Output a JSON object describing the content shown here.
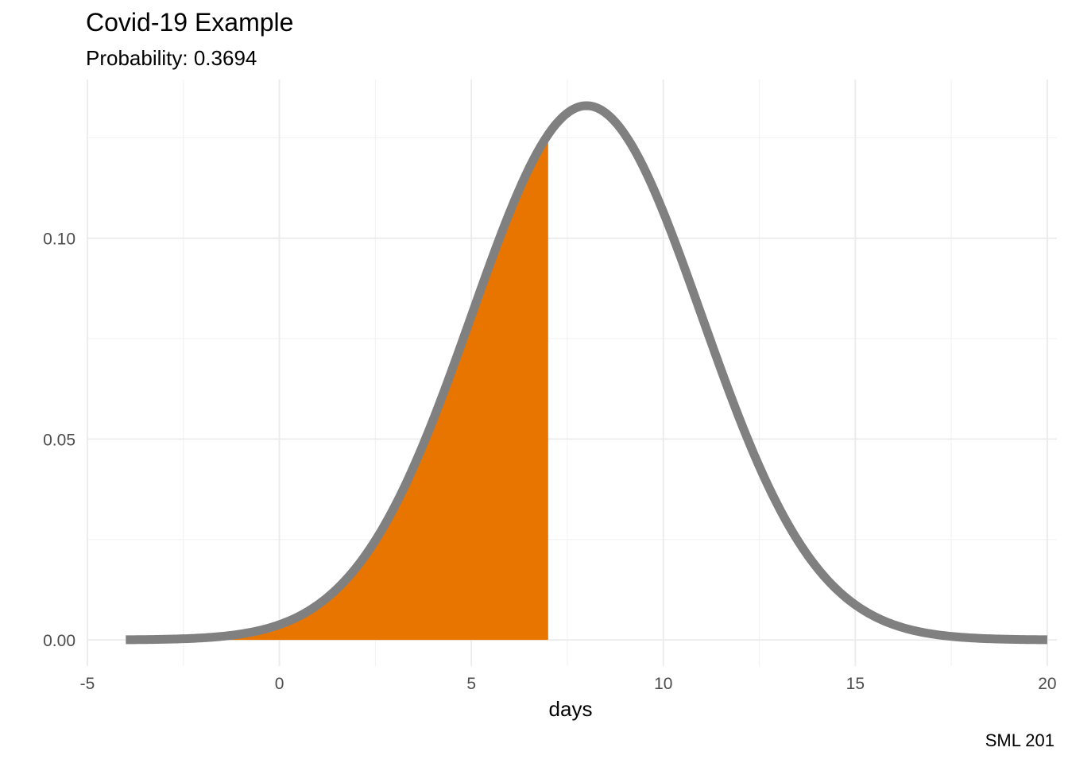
{
  "chart_data": {
    "type": "area",
    "title": "Covid-19 Example",
    "subtitle": "Probability: 0.3694",
    "caption": "SML 201",
    "xlabel": "days",
    "ylabel": "",
    "distribution": {
      "family": "normal",
      "mean": 8,
      "sd": 3
    },
    "curve_range": [
      -4,
      20
    ],
    "shaded_range": [
      -1.3,
      7
    ],
    "xlim": [
      -5,
      20.25
    ],
    "ylim": [
      -0.0065,
      0.1395
    ],
    "x_ticks": [
      -5,
      0,
      5,
      10,
      15,
      20
    ],
    "x_tick_labels": [
      "-5",
      "0",
      "5",
      "10",
      "15",
      "20"
    ],
    "y_ticks": [
      0,
      0.05,
      0.1
    ],
    "y_tick_labels": [
      "0.00",
      "0.05",
      "0.10"
    ],
    "grid": true,
    "colors": {
      "fill": "#e87500",
      "line": "#808080",
      "grid_major": "#ebebeb",
      "grid_minor": "#f3f3f3",
      "text": "#4d4d4d"
    }
  }
}
